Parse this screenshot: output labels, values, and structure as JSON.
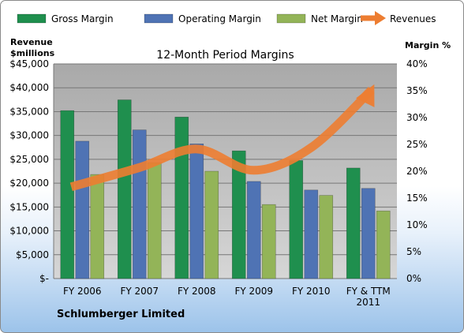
{
  "chart_data": {
    "type": "bar",
    "title": "12-Month Period Margins",
    "subtitle": "Schlumberger Limited",
    "y_left_label": [
      "Revenue",
      "$millions"
    ],
    "y_right_label": "Margin %",
    "categories": [
      [
        "FY 2006"
      ],
      [
        "FY 2007"
      ],
      [
        "FY 2008"
      ],
      [
        "FY 2009"
      ],
      [
        "FY 2010"
      ],
      [
        "FY & TTM",
        "2011"
      ]
    ],
    "y_left_ticks": [
      "$-",
      "$5,000",
      "$10,000",
      "$15,000",
      "$20,000",
      "$25,000",
      "$30,000",
      "$35,000",
      "$40,000",
      "$45,000"
    ],
    "y_right_ticks": [
      "0%",
      "5%",
      "10%",
      "15%",
      "20%",
      "25%",
      "30%",
      "35%",
      "40%"
    ],
    "y_left_range": [
      0,
      45000
    ],
    "y_right_range": [
      0,
      40
    ],
    "grid": true,
    "legend_position": "top",
    "series": [
      {
        "name": "Gross Margin",
        "kind": "bar",
        "axis": "right",
        "color": "#1f8f4e",
        "values": [
          31.3,
          33.3,
          30.1,
          23.8,
          22.0,
          20.6
        ]
      },
      {
        "name": "Operating Margin",
        "kind": "bar",
        "axis": "right",
        "color": "#4f73b4",
        "values": [
          25.6,
          27.7,
          25.1,
          18.1,
          16.5,
          16.8
        ]
      },
      {
        "name": "Net Margin",
        "kind": "bar",
        "axis": "right",
        "color": "#93b458",
        "values": [
          19.4,
          21.6,
          20.0,
          13.8,
          15.5,
          12.6
        ]
      },
      {
        "name": "Revenues",
        "kind": "line",
        "axis": "left",
        "color": "#ed7d31",
        "values": [
          19230,
          23277,
          27163,
          22702,
          27447,
          39540
        ]
      }
    ]
  }
}
